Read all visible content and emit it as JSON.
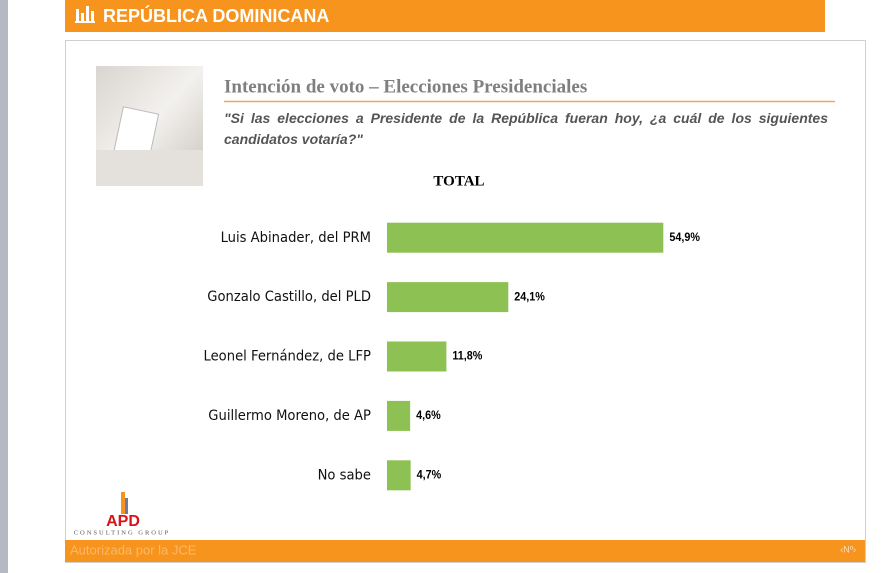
{
  "header": "REPÚBLICA DOMINICANA",
  "footer": {
    "note": "Autorizada por la JCE",
    "page": "‹Nº›"
  },
  "logo": {
    "name": "APD",
    "tagline": "CONSULTING GROUP"
  },
  "chart_data": {
    "type": "hbar",
    "title": "Intención de voto – Elecciones Presidenciales",
    "subtitle": "\"Si las elecciones a Presidente de la República fueran hoy, ¿a cuál de los siguientes candidatos votaría?\"",
    "panel_title": "TOTAL",
    "categories": [
      "Luis Abinader, del PRM",
      "Gonzalo Castillo, del PLD",
      "Leonel Fernández, de LFP",
      "Guillermo Moreno, de AP",
      "No sabe"
    ],
    "values": [
      54.9,
      24.1,
      11.8,
      4.6,
      4.7
    ],
    "value_labels": [
      "54,9%",
      "24,1%",
      "11,8%",
      "4,6%",
      "4,7%"
    ],
    "color": "#8dc153",
    "xlim": [
      0,
      60
    ]
  }
}
